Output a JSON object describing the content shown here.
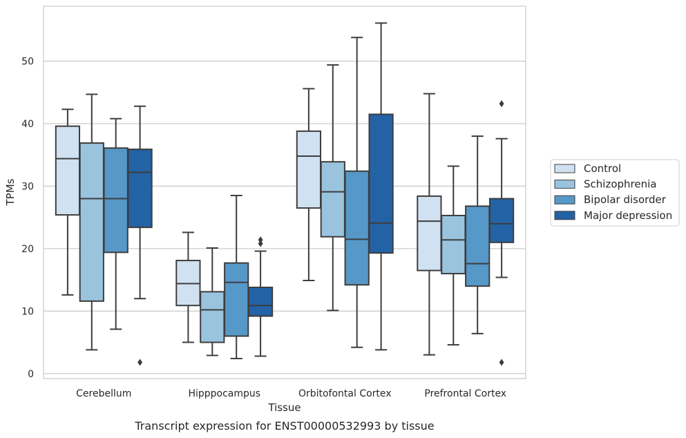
{
  "chart_data": {
    "type": "box",
    "caption": "Transcript expression for ENST00000532993 by tissue",
    "xlabel": "Tissue",
    "ylabel": "TPMs",
    "ylim": [
      -0.8,
      58.8
    ],
    "yticks": [
      0,
      10,
      20,
      30,
      40,
      50
    ],
    "grid": true,
    "legend_position": "right",
    "categories": [
      "Cerebellum",
      "Hipppocampus",
      "Orbitofontal Cortex",
      "Prefrontal Cortex"
    ],
    "series": [
      {
        "name": "Control",
        "color": "#d0e1f2",
        "boxes": [
          {
            "whislo": 12.6,
            "q1": 25.4,
            "med": 34.4,
            "q3": 39.6,
            "whishi": 42.3,
            "fliers": []
          },
          {
            "whislo": 5.0,
            "q1": 10.9,
            "med": 14.4,
            "q3": 18.1,
            "whishi": 22.6,
            "fliers": []
          },
          {
            "whislo": 14.9,
            "q1": 26.5,
            "med": 34.8,
            "q3": 38.8,
            "whishi": 45.6,
            "fliers": []
          },
          {
            "whislo": 3.0,
            "q1": 16.5,
            "med": 24.4,
            "q3": 28.4,
            "whishi": 44.8,
            "fliers": []
          }
        ]
      },
      {
        "name": "Schizophrenia",
        "color": "#9ac3de",
        "boxes": [
          {
            "whislo": 3.8,
            "q1": 11.6,
            "med": 28.0,
            "q3": 36.9,
            "whishi": 44.7,
            "fliers": []
          },
          {
            "whislo": 2.9,
            "q1": 5.0,
            "med": 10.2,
            "q3": 13.1,
            "whishi": 20.1,
            "fliers": []
          },
          {
            "whislo": 10.1,
            "q1": 21.9,
            "med": 29.1,
            "q3": 33.9,
            "whishi": 49.4,
            "fliers": []
          },
          {
            "whislo": 4.6,
            "q1": 16.0,
            "med": 21.4,
            "q3": 25.3,
            "whishi": 33.2,
            "fliers": []
          }
        ]
      },
      {
        "name": "Bipolar disorder",
        "color": "#5698c8",
        "boxes": [
          {
            "whislo": 7.1,
            "q1": 19.4,
            "med": 28.0,
            "q3": 36.1,
            "whishi": 40.8,
            "fliers": []
          },
          {
            "whislo": 2.4,
            "q1": 6.0,
            "med": 14.6,
            "q3": 17.7,
            "whishi": 28.5,
            "fliers": []
          },
          {
            "whislo": 4.2,
            "q1": 14.2,
            "med": 21.5,
            "q3": 32.4,
            "whishi": 53.8,
            "fliers": []
          },
          {
            "whislo": 6.4,
            "q1": 14.0,
            "med": 17.6,
            "q3": 26.8,
            "whishi": 38.0,
            "fliers": []
          }
        ]
      },
      {
        "name": "Major depression",
        "color": "#2462a6",
        "boxes": [
          {
            "whislo": 12.0,
            "q1": 23.4,
            "med": 32.2,
            "q3": 35.9,
            "whishi": 42.8,
            "fliers": [
              1.8
            ]
          },
          {
            "whislo": 2.8,
            "q1": 9.2,
            "med": 10.9,
            "q3": 13.8,
            "whishi": 19.6,
            "fliers": [
              20.8,
              21.4
            ]
          },
          {
            "whislo": 3.8,
            "q1": 19.3,
            "med": 24.1,
            "q3": 41.5,
            "whishi": 56.1,
            "fliers": []
          },
          {
            "whislo": 15.4,
            "q1": 21.0,
            "med": 24.0,
            "q3": 28.0,
            "whishi": 37.6,
            "fliers": [
              1.8,
              43.2
            ]
          }
        ]
      }
    ]
  }
}
